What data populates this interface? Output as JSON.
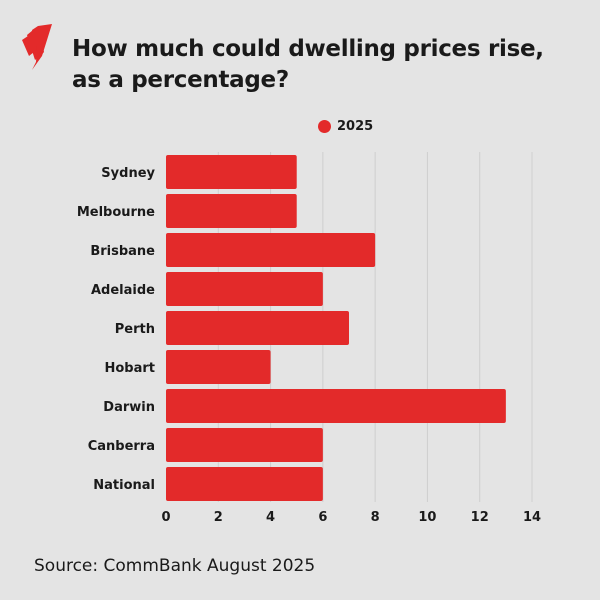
{
  "title": "How much could dwelling prices rise, as a percentage?",
  "title_lines": [
    "How much could dwelling prices rise,",
    "as a percentage?"
  ],
  "source": "Source: CommBank August 2025",
  "colors": {
    "bar": "#e32a2a",
    "background": "#e4e4e4",
    "grid": "#cfcfcf"
  },
  "chart_data": {
    "type": "bar",
    "orientation": "horizontal",
    "categories": [
      "Sydney",
      "Melbourne",
      "Brisbane",
      "Adelaide",
      "Perth",
      "Hobart",
      "Darwin",
      "Canberra",
      "National"
    ],
    "series": [
      {
        "name": "2025",
        "values": [
          5,
          5,
          8,
          6,
          7,
          4,
          13,
          6,
          6
        ]
      }
    ],
    "xlim": [
      0,
      14
    ],
    "xticks": [
      0,
      2,
      4,
      6,
      8,
      10,
      12,
      14
    ],
    "grid": "vertical",
    "legend": "top-center"
  }
}
